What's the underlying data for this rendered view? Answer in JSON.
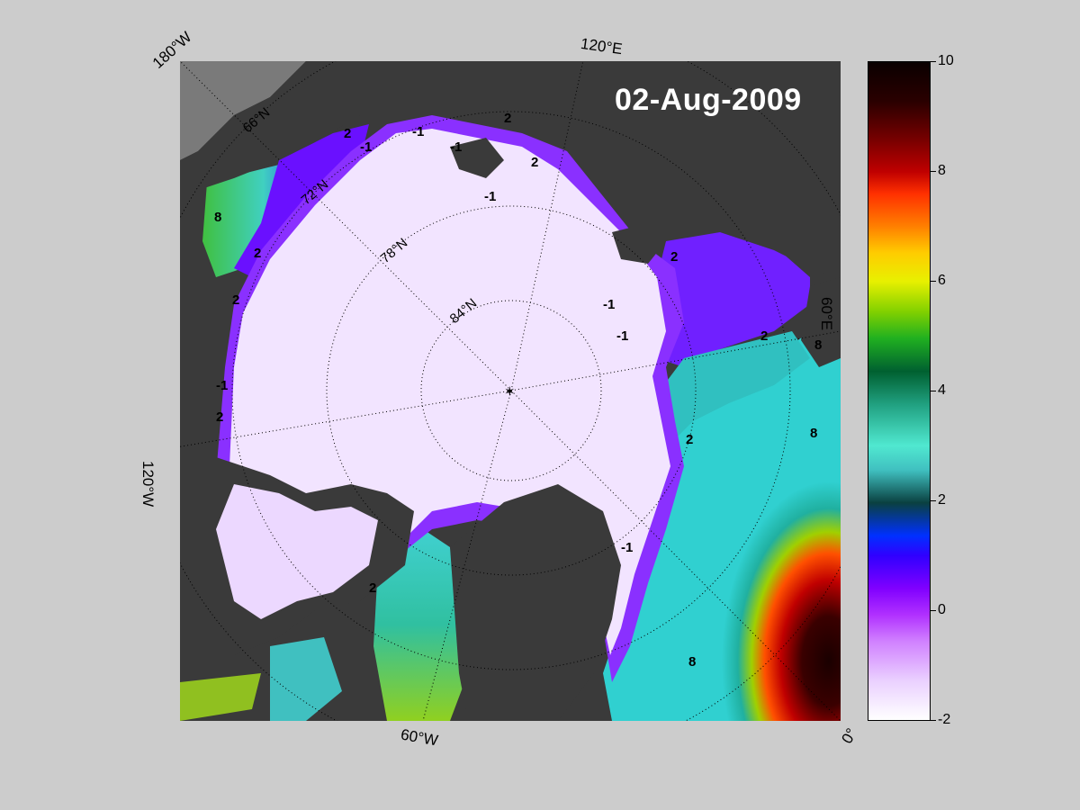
{
  "date_label": "02-Aug-2009",
  "edge_labels": {
    "lon_180w": "180°W",
    "lon_120e": "120°E",
    "lon_60e": "60°E",
    "lon_120w": "120°W",
    "lon_60w": "60°W",
    "lon_0": "0°"
  },
  "grid_labels": {
    "lat_66": "66°N",
    "lat_72": "72°N",
    "lat_78": "78°N",
    "lat_84": "84°N"
  },
  "contour_labels": {
    "c1": "-1",
    "c2": "-1",
    "c3": "-1",
    "c4": "-1",
    "c5": "-1",
    "c6": "-1",
    "c7": "-1",
    "c8": "-1",
    "c9": "2",
    "c10": "2",
    "c11": "2",
    "c12": "2",
    "c13": "2",
    "c14": "2",
    "c15": "2",
    "c16": "2",
    "c17": "2",
    "c18": "2",
    "c19": "8",
    "c20": "8",
    "c21": "8",
    "c22": "8"
  },
  "colorbar": {
    "ticks": [
      "10",
      "8",
      "6",
      "4",
      "2",
      "0",
      "-2"
    ],
    "min": -2,
    "max": 10,
    "colors": {
      "low": "#ffffff",
      "cold": "#8000ff",
      "mid": "#40e0d0",
      "warm": "#ff3000",
      "high": "#0a0000"
    }
  },
  "map_colors": {
    "land": "#3a3a3a",
    "ice": "#f2e4ff",
    "outside_map": "#cccccc"
  }
}
